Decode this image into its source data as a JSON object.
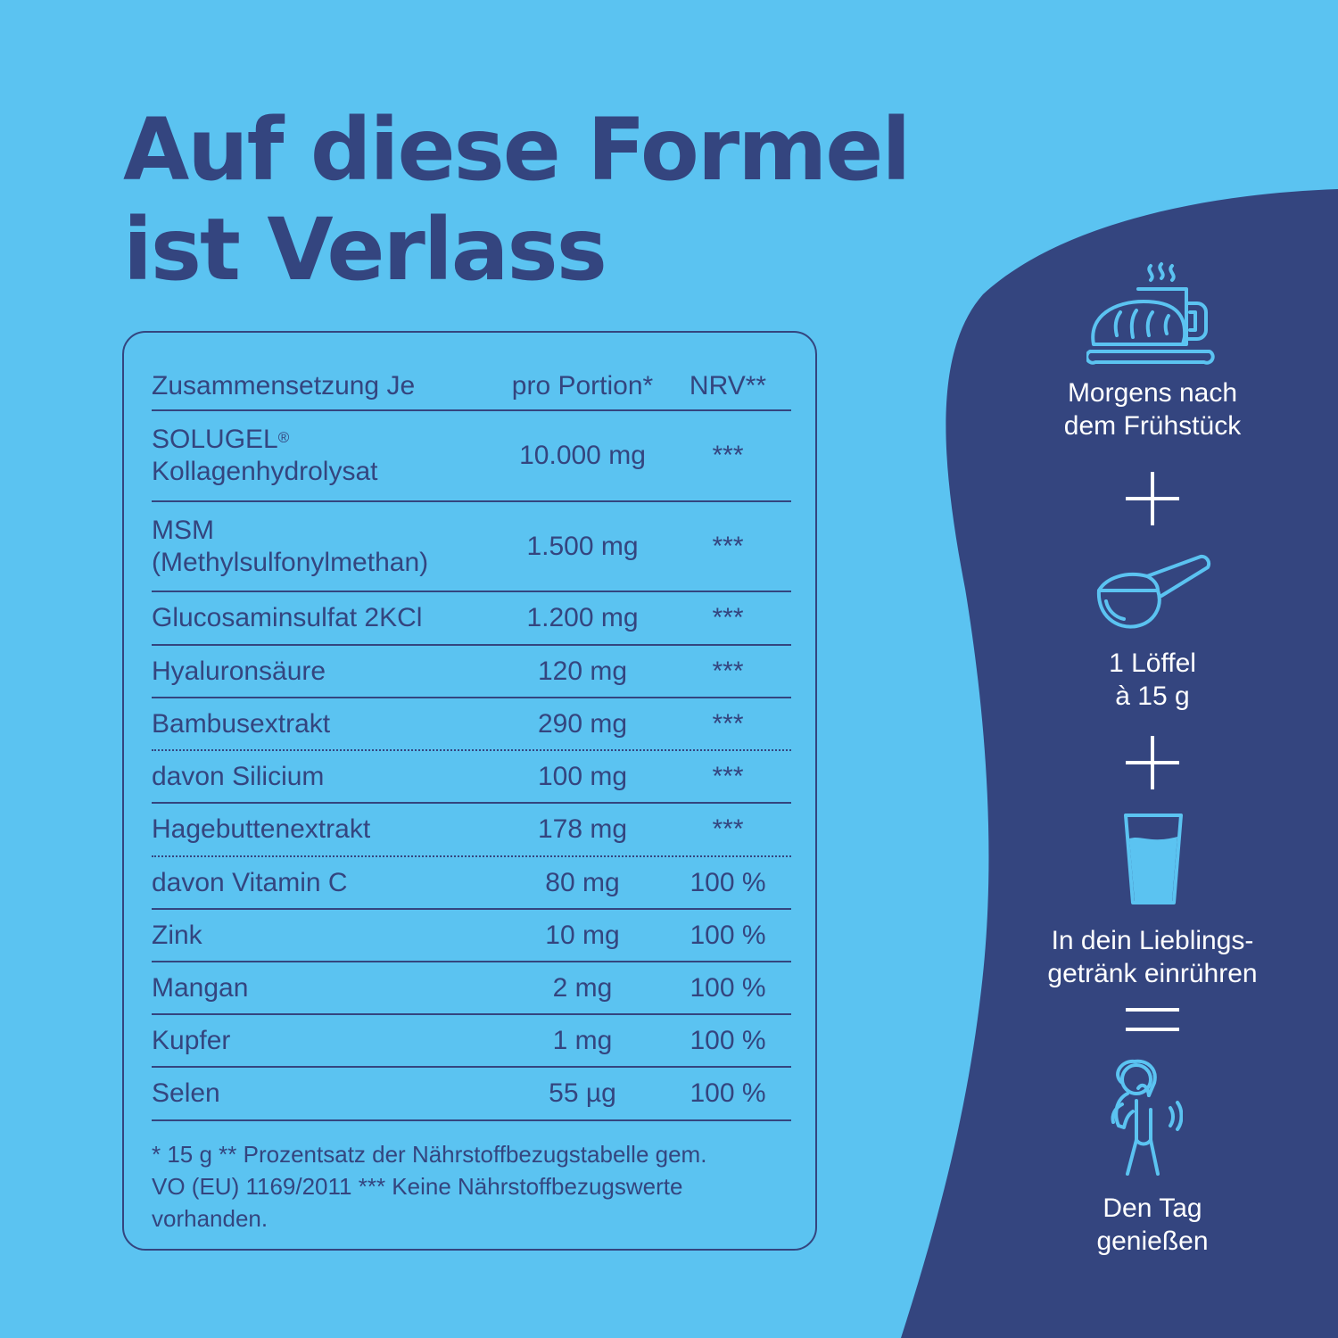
{
  "headline": {
    "line1": "Auf diese Formel",
    "line2": "ist Verlass"
  },
  "colors": {
    "background": "#5bc3f1",
    "navy": "#34457f",
    "white": "#ffffff"
  },
  "table": {
    "headers": {
      "name": "Zusammensetzung Je",
      "amount": "pro Portion*",
      "nrv": "NRV**"
    },
    "rows": [
      {
        "name": "SOLUGEL",
        "mark": "®",
        "name2": "Kollagenhydrolysat",
        "amount": "10.000 mg",
        "nrv": "***"
      },
      {
        "name": "MSM",
        "name2": "(Methylsulfonylmethan)",
        "amount": "1.500 mg",
        "nrv": "***"
      },
      {
        "name": "Glucosaminsulfat 2KCl",
        "amount": "1.200 mg",
        "nrv": "***"
      },
      {
        "name": "Hyaluronsäure",
        "amount": "120 mg",
        "nrv": "***"
      },
      {
        "name": "Bambusextrakt",
        "amount": "290 mg",
        "nrv": "***"
      },
      {
        "name": "davon Silicium",
        "amount": "100 mg",
        "nrv": "***"
      },
      {
        "name": "Hagebuttenextrakt",
        "amount": "178 mg",
        "nrv": "***"
      },
      {
        "name": "davon Vitamin C",
        "amount": "80 mg",
        "nrv": "100 %"
      },
      {
        "name": "Zink",
        "amount": "10 mg",
        "nrv": "100 %"
      },
      {
        "name": "Mangan",
        "amount": "2 mg",
        "nrv": "100 %"
      },
      {
        "name": "Kupfer",
        "amount": "1 mg",
        "nrv": "100 %"
      },
      {
        "name": "Selen",
        "amount": "55 µg",
        "nrv": "100 %"
      }
    ],
    "footnote": {
      "line1": "* 15 g ** Prozentsatz der Nährstoffbezugstabelle gem.",
      "line2": "VO (EU) 1169/2011 *** Keine Nährstoffbezugswerte",
      "line3": "vorhanden."
    }
  },
  "steps": [
    {
      "icon": "breakfast-icon",
      "line1": "Morgens nach",
      "line2": "dem Frühstück"
    },
    {
      "icon": "scoop-icon",
      "line1": "1 Löffel",
      "line2": "à 15 g"
    },
    {
      "icon": "glass-icon",
      "line1": "In dein Lieblings-",
      "line2": "getränk einrühren"
    },
    {
      "icon": "happy-person-icon",
      "line1": "Den Tag",
      "line2": "genießen"
    }
  ],
  "operators": [
    "plus-icon",
    "plus-icon",
    "equals-icon"
  ]
}
